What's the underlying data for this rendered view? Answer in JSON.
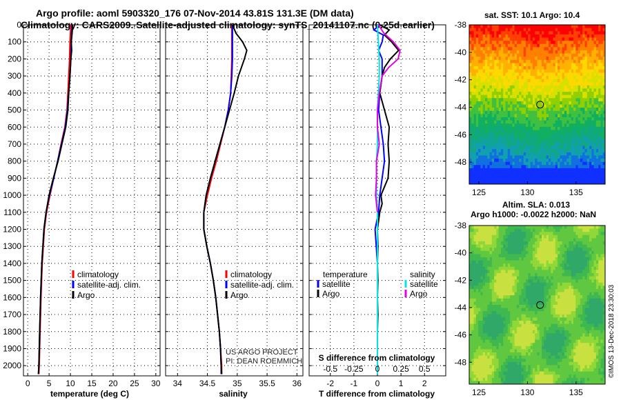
{
  "header": {
    "line1": "Argo profile: aoml 5903320_176 07-Nov-2014 43.81S 131.3E (DM data)",
    "line2": "Climatology: CARS2009. Satellite-adjusted climatology: synTS_20141107.nc (0.25d earlier)"
  },
  "credit": {
    "line1": "US ARGO PROJECT",
    "line2": "PI: DEAN ROEMMICH"
  },
  "timestamp": "©IMOS 13-Dec-2018 23:30:03",
  "colors": {
    "climatology": "#ff0000",
    "satellite": "#0000ff",
    "argo": "#000000",
    "sal_satellite": "#00e5e5",
    "sal_argo": "#e600e6"
  },
  "chart_data": [
    {
      "id": "temperature",
      "type": "line",
      "xlabel": "temperature (deg C)",
      "ylabel": "",
      "xlim": [
        -1,
        31
      ],
      "ylim": [
        2060,
        0
      ],
      "xticks": [
        0,
        5,
        10,
        15,
        20,
        25,
        30
      ],
      "yticks": [
        0,
        100,
        200,
        300,
        400,
        500,
        600,
        700,
        800,
        900,
        1000,
        1100,
        1200,
        1300,
        1400,
        1500,
        1600,
        1700,
        1800,
        1900,
        2000
      ],
      "legend": [
        "climatology",
        "satellite-adj. clim.",
        "Argo"
      ],
      "series": [
        {
          "name": "climatology",
          "color": "#ff0000",
          "depth": [
            0,
            100,
            200,
            300,
            400,
            500,
            600,
            700,
            800,
            900,
            1000,
            1100,
            1200,
            1400,
            1600,
            1800,
            2000,
            2050
          ],
          "values": [
            10.1,
            9.9,
            9.8,
            9.6,
            9.4,
            9.2,
            8.7,
            7.8,
            7.0,
            6.1,
            5.2,
            4.4,
            3.9,
            3.4,
            3.1,
            2.9,
            2.7,
            2.6
          ]
        },
        {
          "name": "satellite-adj. clim.",
          "color": "#0000ff",
          "depth": [
            0,
            100,
            200,
            300,
            400,
            500,
            600,
            700,
            800,
            900,
            1000,
            1100,
            1200,
            1400,
            1600,
            1800,
            2000,
            2050
          ],
          "values": [
            10.4,
            10.2,
            10.1,
            9.9,
            9.6,
            9.3,
            8.8,
            7.9,
            7.0,
            6.1,
            5.1,
            4.3,
            3.8,
            3.3,
            3.0,
            2.8,
            2.6,
            2.5
          ]
        },
        {
          "name": "Argo",
          "color": "#000000",
          "depth": [
            0,
            50,
            100,
            150,
            200,
            300,
            400,
            500,
            600,
            700,
            800,
            900,
            1000,
            1100,
            1200,
            1400,
            1600,
            1800,
            2000,
            2050
          ],
          "values": [
            10.5,
            10.4,
            10.2,
            10.3,
            10.1,
            9.9,
            9.6,
            9.4,
            8.9,
            8.0,
            7.1,
            6.0,
            5.0,
            4.3,
            3.8,
            3.3,
            3.0,
            2.8,
            2.6,
            2.5
          ]
        }
      ]
    },
    {
      "id": "salinity",
      "type": "line",
      "xlabel": "salinity",
      "ylabel": "",
      "xlim": [
        33.8,
        36.1
      ],
      "ylim": [
        2060,
        0
      ],
      "xticks": [
        34,
        34.5,
        35,
        35.5,
        36
      ],
      "yticks": [
        0,
        100,
        200,
        300,
        400,
        500,
        600,
        700,
        800,
        900,
        1000,
        1100,
        1200,
        1300,
        1400,
        1500,
        1600,
        1700,
        1800,
        1900,
        2000
      ],
      "legend": [
        "climatology",
        "satellite-adj. clim.",
        "Argo"
      ],
      "series": [
        {
          "name": "climatology",
          "color": "#ff0000",
          "depth": [
            0,
            100,
            200,
            300,
            400,
            500,
            600,
            700,
            800,
            900,
            1000,
            1100,
            1200,
            1300,
            1400,
            1500,
            1600,
            1700,
            1800,
            1900,
            2000,
            2050
          ],
          "values": [
            34.91,
            34.91,
            34.91,
            34.9,
            34.89,
            34.85,
            34.79,
            34.72,
            34.65,
            34.57,
            34.5,
            34.44,
            34.44,
            34.49,
            34.55,
            34.6,
            34.64,
            34.67,
            34.7,
            34.72,
            34.74,
            34.74
          ]
        },
        {
          "name": "satellite-adj. clim.",
          "color": "#0000ff",
          "depth": [
            0,
            100,
            200,
            300,
            400,
            500,
            600,
            700,
            800,
            900,
            1000,
            1100,
            1200,
            1300,
            1400,
            1500,
            1600,
            1700,
            1800,
            1900,
            2000,
            2050
          ],
          "values": [
            34.92,
            34.92,
            34.92,
            34.91,
            34.89,
            34.85,
            34.79,
            34.71,
            34.63,
            34.55,
            34.48,
            34.44,
            34.44,
            34.49,
            34.55,
            34.6,
            34.64,
            34.67,
            34.7,
            34.72,
            34.73,
            34.73
          ]
        },
        {
          "name": "Argo",
          "color": "#000000",
          "depth": [
            0,
            50,
            100,
            150,
            200,
            300,
            400,
            500,
            600,
            700,
            800,
            900,
            1000,
            1100,
            1200,
            1300,
            1400,
            1500,
            1600,
            1700,
            1800,
            1900,
            2000,
            2050
          ],
          "values": [
            34.92,
            34.98,
            35.09,
            35.16,
            35.12,
            35.02,
            34.95,
            34.87,
            34.79,
            34.71,
            34.63,
            34.55,
            34.48,
            34.44,
            34.44,
            34.49,
            34.55,
            34.6,
            34.64,
            34.67,
            34.7,
            34.72,
            34.73,
            34.74
          ]
        }
      ]
    },
    {
      "id": "differences",
      "type": "line",
      "xlabel": "T difference from climatology",
      "xlabel2": "S difference from climatology",
      "xlim": [
        -2.9,
        2.9
      ],
      "ylim": [
        2060,
        0
      ],
      "xticks": [
        -2,
        -1,
        0,
        1,
        2
      ],
      "xticks2": [
        -0.5,
        -0.25,
        0,
        0.25,
        0.5
      ],
      "xticks2_labels": [
        "-0.5",
        "-0.25",
        "0",
        "0.25",
        "0.5"
      ],
      "yticks": [
        0,
        100,
        200,
        300,
        400,
        500,
        600,
        700,
        800,
        900,
        1000,
        1100,
        1200,
        1300,
        1400,
        1500,
        1600,
        1700,
        1800,
        1900,
        2000
      ],
      "legend_left_title": "temperature",
      "legend_right_title": "salinity",
      "legend_left": [
        "satellite",
        "Argo"
      ],
      "legend_right": [
        "satellite",
        "Argo"
      ],
      "series": [
        {
          "name": "T satellite",
          "color": "#0000ff",
          "depth": [
            0,
            30,
            60,
            100,
            150,
            200,
            300,
            400,
            500,
            600,
            700,
            800,
            900,
            1000,
            1100,
            1200,
            1300,
            1400
          ],
          "values": [
            0.1,
            -0.15,
            0.25,
            0.2,
            0.05,
            0.2,
            0.2,
            0.1,
            0.05,
            0.15,
            0.25,
            0.3,
            0.2,
            0.1,
            0.05,
            -0.1,
            -0.05,
            0.0
          ]
        },
        {
          "name": "T Argo",
          "color": "#000000",
          "depth": [
            0,
            30,
            60,
            100,
            150,
            200,
            250,
            300,
            400,
            500,
            600,
            700,
            800,
            900,
            1000,
            1050,
            1100,
            1200,
            1300,
            1400,
            1500,
            1600,
            1700,
            1800,
            1900,
            2000,
            2050
          ],
          "values": [
            0.1,
            0.5,
            0.3,
            0.6,
            0.9,
            0.55,
            0.3,
            0.2,
            0.1,
            0.3,
            0.5,
            0.45,
            0.5,
            0.45,
            0.15,
            0.2,
            0.1,
            0.0,
            0.02,
            0.0,
            0.02,
            0.0,
            0.02,
            0.0,
            0.0,
            0.0,
            0.0
          ]
        },
        {
          "name": "S satellite",
          "color": "#00e5e5",
          "depth": [
            0,
            100,
            200,
            300,
            400,
            500,
            600,
            700,
            800,
            900,
            1000,
            1100,
            1200,
            1400,
            1600,
            1800,
            2000,
            2050
          ],
          "values": [
            0.0,
            0.01,
            0.02,
            0.02,
            0.01,
            0.0,
            0.0,
            0.0,
            -0.01,
            -0.01,
            -0.01,
            0.0,
            0.0,
            0.0,
            0.0,
            0.0,
            0.0,
            0.0
          ]
        },
        {
          "name": "S Argo",
          "color": "#e600e6",
          "depth": [
            0,
            50,
            100,
            150,
            200,
            250,
            300,
            400,
            500,
            600,
            700,
            800,
            900,
            1000,
            1100
          ],
          "values": [
            0.01,
            0.07,
            0.17,
            0.24,
            0.22,
            0.12,
            0.05,
            0.02,
            0.0,
            0.0,
            0.02,
            -0.01,
            -0.01,
            -0.02,
            0.0
          ]
        }
      ]
    },
    {
      "id": "sst_map",
      "type": "heatmap",
      "title": "sat. SST: 10.1  Argo: 10.4",
      "xlim": [
        124,
        138
      ],
      "ylim": [
        -49.6,
        -38
      ],
      "xticks": [
        125,
        130,
        135
      ],
      "yticks": [
        -38,
        -40,
        -42,
        -44,
        -46,
        -48
      ],
      "marker": {
        "lon": 131.3,
        "lat": -43.81
      }
    },
    {
      "id": "sla_map",
      "type": "heatmap",
      "title1": "Altim. SLA: 0.013",
      "title2": "Argo h1000: -0.0022 h2000: NaN",
      "xlim": [
        124,
        138
      ],
      "ylim": [
        -49.6,
        -38
      ],
      "xticks": [
        125,
        130,
        135
      ],
      "yticks": [
        -38,
        -40,
        -42,
        -44,
        -46,
        -48
      ],
      "marker": {
        "lon": 131.3,
        "lat": -43.81
      }
    }
  ]
}
